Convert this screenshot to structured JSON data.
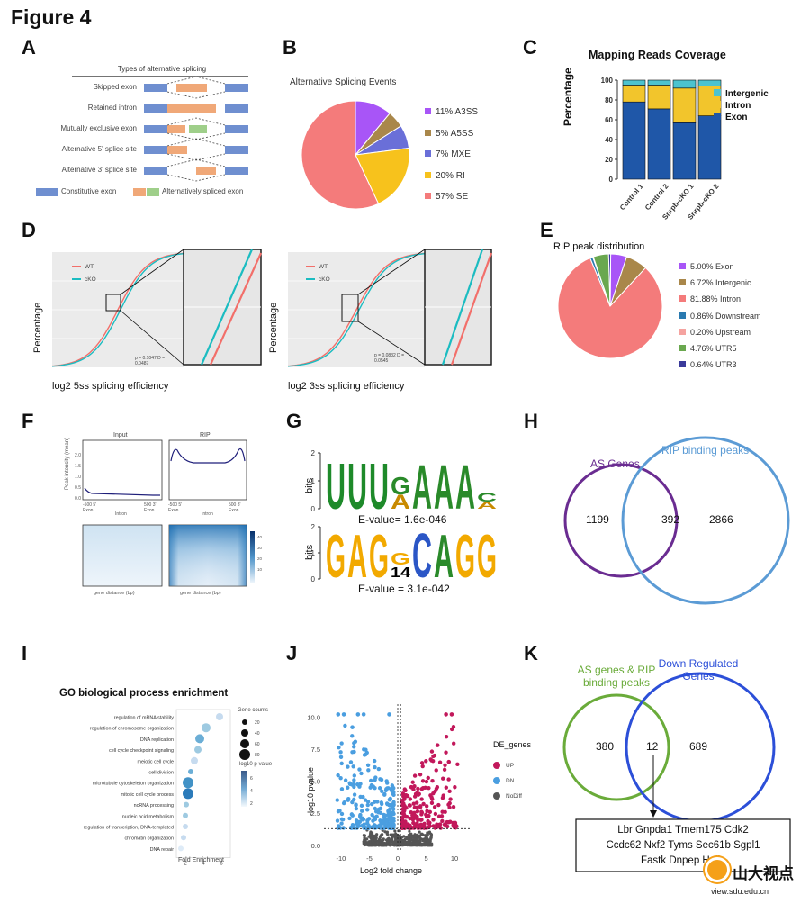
{
  "figure_title": "Figure 4",
  "panels": [
    "A",
    "B",
    "C",
    "D",
    "E",
    "F",
    "G",
    "H",
    "I",
    "J",
    "K"
  ],
  "panel_a": {
    "header": "Types of alternative splicing",
    "rows": [
      "Skipped exon",
      "Retained intron",
      "Mutually exclusive exon",
      "Alternative 5' splice site",
      "Alternative 3' splice site"
    ],
    "legend": [
      "Constitutive exon",
      "Alternatively spliced exon"
    ],
    "colors": {
      "constitutive": "#6f8fd0",
      "alt_orange": "#f0a878",
      "alt_green": "#9fcf8a"
    }
  },
  "chart_data": [
    {
      "panel": "B",
      "type": "pie",
      "title": "Alternative Splicing Events",
      "categories": [
        "A3SS",
        "A5SS",
        "MXE",
        "RI",
        "SE"
      ],
      "values": [
        11,
        5,
        7,
        20,
        57
      ],
      "labels": [
        "11% A3SS",
        "5% A5SS",
        "7% MXE",
        "20% RI",
        "57% SE"
      ],
      "colors": [
        "#a855f7",
        "#a9874a",
        "#6a6fd8",
        "#f7c21c",
        "#f47b7b"
      ]
    },
    {
      "panel": "C",
      "type": "bar",
      "stacked": true,
      "title": "Mapping Reads Coverage",
      "ylabel": "Percentage",
      "ylim": [
        0,
        100
      ],
      "yticks": [
        "0",
        "20",
        "40",
        "60",
        "80",
        "100"
      ],
      "categories": [
        "Control 1",
        "Control 2",
        "Snrpb-cKO 1",
        "Snrpb-cKO 2"
      ],
      "series": [
        {
          "name": "Exon",
          "values": [
            78,
            71,
            57,
            64
          ],
          "color": "#1f57a8"
        },
        {
          "name": "Intron",
          "values": [
            17,
            24,
            35,
            30
          ],
          "color": "#f2c52c"
        },
        {
          "name": "Intergenic",
          "values": [
            5,
            5,
            8,
            6
          ],
          "color": "#4cc3cf"
        }
      ],
      "legend": [
        "Intergenic",
        "Intron",
        "Exon"
      ]
    },
    {
      "panel": "D",
      "type": "line",
      "subplots": [
        {
          "xlabel": "log2 5ss splicing efficiency",
          "ylabel": "Percentage",
          "legend": [
            "WT",
            "cKO"
          ],
          "stat": "p = 0.1047 D = 0.0487"
        },
        {
          "xlabel": "log2 3ss splicing efficiency",
          "ylabel": "Percentage",
          "legend": [
            "WT",
            "cKO"
          ],
          "stat": "p = 0.0832 D = 0.0545"
        }
      ],
      "series_colors": {
        "WT": "#f26f6a",
        "cKO": "#1bbcc1"
      }
    },
    {
      "panel": "E",
      "type": "pie",
      "title": "RIP peak distribution",
      "categories": [
        "Exon",
        "Intergenic",
        "Intron",
        "Downstream",
        "Upstream",
        "UTR5",
        "UTR3"
      ],
      "values": [
        5.0,
        6.72,
        81.88,
        0.86,
        0.2,
        4.76,
        0.64
      ],
      "labels": [
        "5.00% Exon",
        "6.72% Intergenic",
        "81.88% Intron",
        "0.86% Downstream",
        "0.20% Upstream",
        "4.76% UTR5",
        "0.64% UTR3"
      ],
      "colors": [
        "#a855f7",
        "#a9874a",
        "#f47b7b",
        "#2a7ab0",
        "#f5a3a0",
        "#6aa84f",
        "#3a3a9a"
      ]
    },
    {
      "panel": "F",
      "type": "line",
      "subplots": [
        {
          "title": "Input",
          "ylabel": "Peak intensity (mean)",
          "xticks": [
            "-500 5' Exon",
            "Intron",
            "500 3' Exon"
          ]
        },
        {
          "title": "RIP",
          "xticks": [
            "-500 5' Exon",
            "Intron",
            "500 3' Exon"
          ]
        }
      ],
      "yticks": [
        "0.0",
        "0.5",
        "1.0",
        "1.5",
        "2.0"
      ],
      "heatmap_xlabel": "gene distance (bp)",
      "colorbar_ticks": [
        "40",
        "30",
        "20",
        "10"
      ]
    },
    {
      "panel": "G",
      "type": "table",
      "motifs": [
        {
          "letters": [
            "U",
            "U",
            "U",
            "G/A",
            "A",
            "A",
            "A",
            "C/A"
          ],
          "ylabel": "bits",
          "evalue": "E-value= 1.6e-046"
        },
        {
          "letters": [
            "G",
            "A",
            "G",
            "G/A",
            "C",
            "A",
            "G",
            "G"
          ],
          "ylabel": "bits",
          "evalue": "E-value = 3.1e-042"
        }
      ],
      "y_ticks": [
        "0",
        "1",
        "2"
      ]
    },
    {
      "panel": "H",
      "type": "table",
      "sets": [
        {
          "name": "AS Genes",
          "count": "1199",
          "color": "#6a2c91"
        },
        {
          "name": "RIP binding peaks",
          "count": "2866",
          "color": "#5b9bd5"
        }
      ],
      "overlap": "392"
    },
    {
      "panel": "I",
      "type": "scatter",
      "title": "GO biological process enrichment",
      "xlabel": "Fold Enrichment",
      "xticks": [
        "2",
        "4",
        "6"
      ],
      "terms": [
        "regulation of mRNA stability",
        "regulation of chromosome organization",
        "DNA replication",
        "cell cycle checkpoint signaling",
        "meiotic cell cycle",
        "cell division",
        "microtubule cytoskeleton organization",
        "mitotic cell cycle process",
        "ncRNA processing",
        "nucleic acid metabolism",
        "regulation of transcription, DNA-templated",
        "chromatin organization",
        "DNA repair"
      ],
      "fold_enrichment": [
        5.8,
        4.3,
        3.6,
        3.4,
        3.0,
        2.6,
        2.3,
        2.3,
        2.1,
        2.0,
        2.0,
        1.8,
        1.5
      ],
      "legend_size_title": "Gene counts",
      "legend_size_values": [
        "20",
        "40",
        "60",
        "80"
      ],
      "legend_color_title": "-log10 p-value",
      "legend_color_ticks": [
        "2",
        "4",
        "6"
      ]
    },
    {
      "panel": "J",
      "type": "scatter",
      "xlabel": "Log2 fold change",
      "ylabel": "-log10 pvalue",
      "xticks": [
        "-10",
        "-5",
        "0",
        "5",
        "10"
      ],
      "yticks": [
        "0.0",
        "2.5",
        "5.0",
        "7.5",
        "10.0"
      ],
      "xlim": [
        -13,
        13
      ],
      "ylim": [
        -0.5,
        11
      ],
      "legend_title": "DE_genes",
      "legend": [
        "UP",
        "DN",
        "NoDiff"
      ],
      "colors": {
        "UP": "#c2185b",
        "DN": "#4a9ee0",
        "NoDiff": "#555555"
      }
    },
    {
      "panel": "K",
      "type": "table",
      "sets": [
        {
          "name": "AS genes & RIP binding peaks",
          "count": "380",
          "color": "#6aab3a"
        },
        {
          "name": "Down Regulated Genes",
          "count": "689",
          "color": "#2c4fd8"
        }
      ],
      "overlap": "12",
      "gene_box": [
        "Lbr Gnpda1 Tmem175 Cdk2",
        "Ccdc62 Nxf2 Tyms Sec61b Sgpl1",
        "Fastk Dnpep Hells"
      ]
    }
  ],
  "watermark": {
    "brand": "山大视点",
    "url": "view.sdu.edu.cn"
  }
}
